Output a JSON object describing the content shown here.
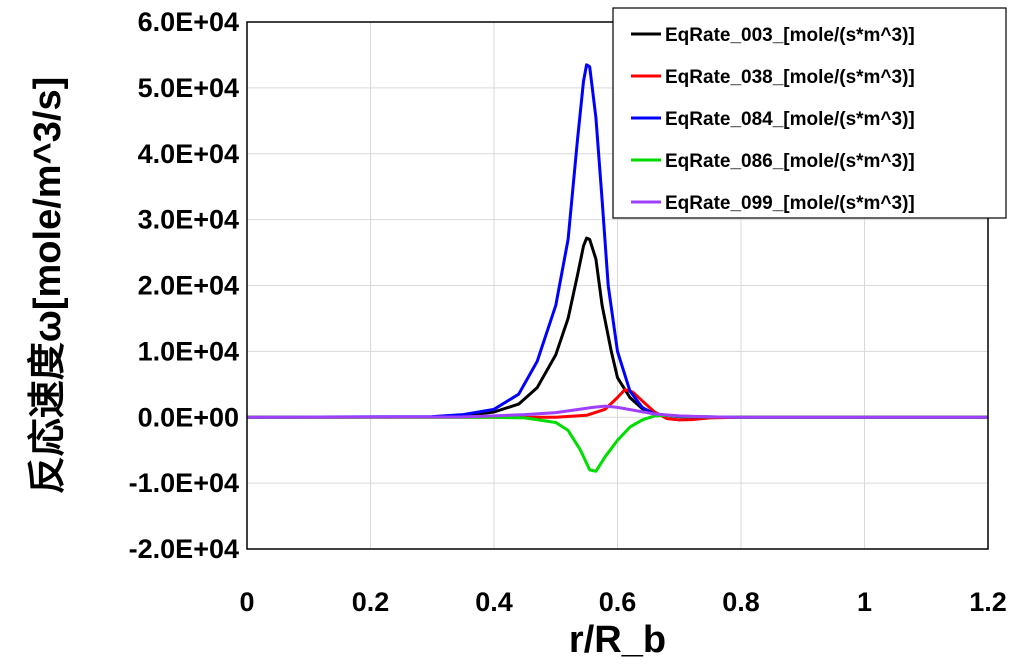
{
  "chart_data": {
    "type": "line",
    "xlabel": "r/R_b",
    "ylabel": "反応速度ω[mole/m^3/s]",
    "xlim": [
      0,
      1.2
    ],
    "ylim": [
      -20000,
      60000
    ],
    "x_ticks": [
      0,
      0.2,
      0.4,
      0.6,
      0.8,
      1.0,
      1.2
    ],
    "x_tick_labels": [
      "0",
      "0.2",
      "0.4",
      "0.6",
      "0.8",
      "1",
      "1.2"
    ],
    "y_ticks": [
      60000,
      50000,
      40000,
      30000,
      20000,
      10000,
      0,
      -10000,
      -20000
    ],
    "y_tick_labels": [
      "6.0E+04",
      "5.0E+04",
      "4.0E+04",
      "3.0E+04",
      "2.0E+04",
      "1.0E+04",
      "0.0E+00",
      "-1.0E+04",
      "-2.0E+04"
    ],
    "grid": true,
    "legend_position": "top-right",
    "series": [
      {
        "name": "EqRate_003_[mole/(s*m^3)]",
        "color": "#000000",
        "points": [
          [
            0,
            0
          ],
          [
            0.3,
            50
          ],
          [
            0.35,
            200
          ],
          [
            0.4,
            800
          ],
          [
            0.44,
            2000
          ],
          [
            0.47,
            4500
          ],
          [
            0.5,
            9500
          ],
          [
            0.52,
            15000
          ],
          [
            0.535,
            21500
          ],
          [
            0.545,
            26000
          ],
          [
            0.55,
            27200
          ],
          [
            0.555,
            27000
          ],
          [
            0.565,
            24000
          ],
          [
            0.575,
            17000
          ],
          [
            0.59,
            10000
          ],
          [
            0.6,
            6000
          ],
          [
            0.62,
            3000
          ],
          [
            0.64,
            1300
          ],
          [
            0.66,
            500
          ],
          [
            0.7,
            100
          ],
          [
            0.8,
            0
          ],
          [
            1.2,
            0
          ]
        ]
      },
      {
        "name": "EqRate_038_[mole/(s*m^3)]",
        "color": "#ff0000",
        "points": [
          [
            0,
            0
          ],
          [
            0.5,
            0
          ],
          [
            0.55,
            300
          ],
          [
            0.58,
            1200
          ],
          [
            0.6,
            3000
          ],
          [
            0.612,
            4200
          ],
          [
            0.625,
            3800
          ],
          [
            0.64,
            2500
          ],
          [
            0.66,
            800
          ],
          [
            0.68,
            -200
          ],
          [
            0.7,
            -400
          ],
          [
            0.72,
            -350
          ],
          [
            0.75,
            -100
          ],
          [
            0.8,
            0
          ],
          [
            1.2,
            0
          ]
        ]
      },
      {
        "name": "EqRate_084_[mole/(s*m^3)]",
        "color": "#0000ff",
        "points": [
          [
            0,
            0
          ],
          [
            0.3,
            100
          ],
          [
            0.35,
            400
          ],
          [
            0.4,
            1200
          ],
          [
            0.44,
            3500
          ],
          [
            0.47,
            8500
          ],
          [
            0.5,
            17000
          ],
          [
            0.52,
            27000
          ],
          [
            0.535,
            42000
          ],
          [
            0.545,
            51000
          ],
          [
            0.55,
            53500
          ],
          [
            0.555,
            53200
          ],
          [
            0.565,
            45500
          ],
          [
            0.575,
            33000
          ],
          [
            0.585,
            20000
          ],
          [
            0.6,
            10000
          ],
          [
            0.62,
            4000
          ],
          [
            0.64,
            1500
          ],
          [
            0.66,
            500
          ],
          [
            0.7,
            100
          ],
          [
            0.8,
            0
          ],
          [
            1.2,
            0
          ]
        ]
      },
      {
        "name": "EqRate_086_[mole/(s*m^3)]",
        "color": "#00dd00",
        "points": [
          [
            0,
            0
          ],
          [
            0.4,
            0
          ],
          [
            0.45,
            -100
          ],
          [
            0.5,
            -800
          ],
          [
            0.52,
            -2000
          ],
          [
            0.54,
            -5000
          ],
          [
            0.555,
            -8000
          ],
          [
            0.565,
            -8200
          ],
          [
            0.58,
            -6000
          ],
          [
            0.6,
            -3500
          ],
          [
            0.62,
            -1500
          ],
          [
            0.64,
            -400
          ],
          [
            0.66,
            200
          ],
          [
            0.68,
            300
          ],
          [
            0.7,
            150
          ],
          [
            0.75,
            50
          ],
          [
            0.8,
            0
          ],
          [
            1.2,
            0
          ]
        ]
      },
      {
        "name": "EqRate_099_[mole/(s*m^3)]",
        "color": "#a040ff",
        "points": [
          [
            0,
            0
          ],
          [
            0.35,
            50
          ],
          [
            0.4,
            200
          ],
          [
            0.45,
            400
          ],
          [
            0.5,
            700
          ],
          [
            0.53,
            1100
          ],
          [
            0.56,
            1500
          ],
          [
            0.58,
            1700
          ],
          [
            0.6,
            1500
          ],
          [
            0.63,
            1000
          ],
          [
            0.66,
            500
          ],
          [
            0.7,
            200
          ],
          [
            0.75,
            50
          ],
          [
            0.8,
            0
          ],
          [
            1.2,
            0
          ]
        ]
      }
    ]
  }
}
